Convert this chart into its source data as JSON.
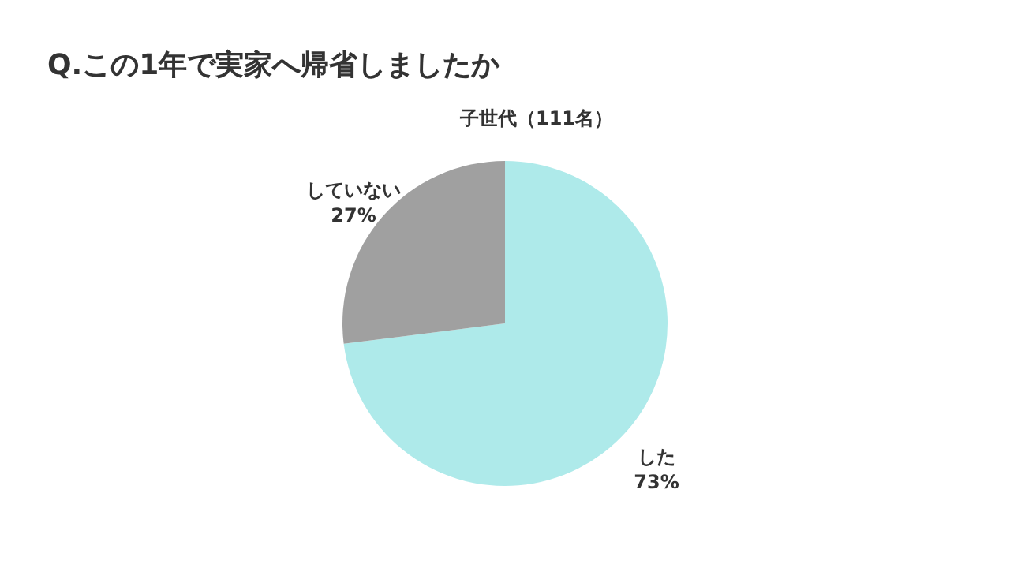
{
  "chart_data": {
    "type": "pie",
    "title": "Q.この1年で実家へ帰省しましたか",
    "subtitle": "子世代（111名）",
    "categories": [
      "した",
      "していない"
    ],
    "values": [
      73,
      27
    ],
    "colors": [
      "#aeeaea",
      "#a0a0a0"
    ],
    "value_labels": [
      "73%",
      "27%"
    ],
    "legend": false
  }
}
